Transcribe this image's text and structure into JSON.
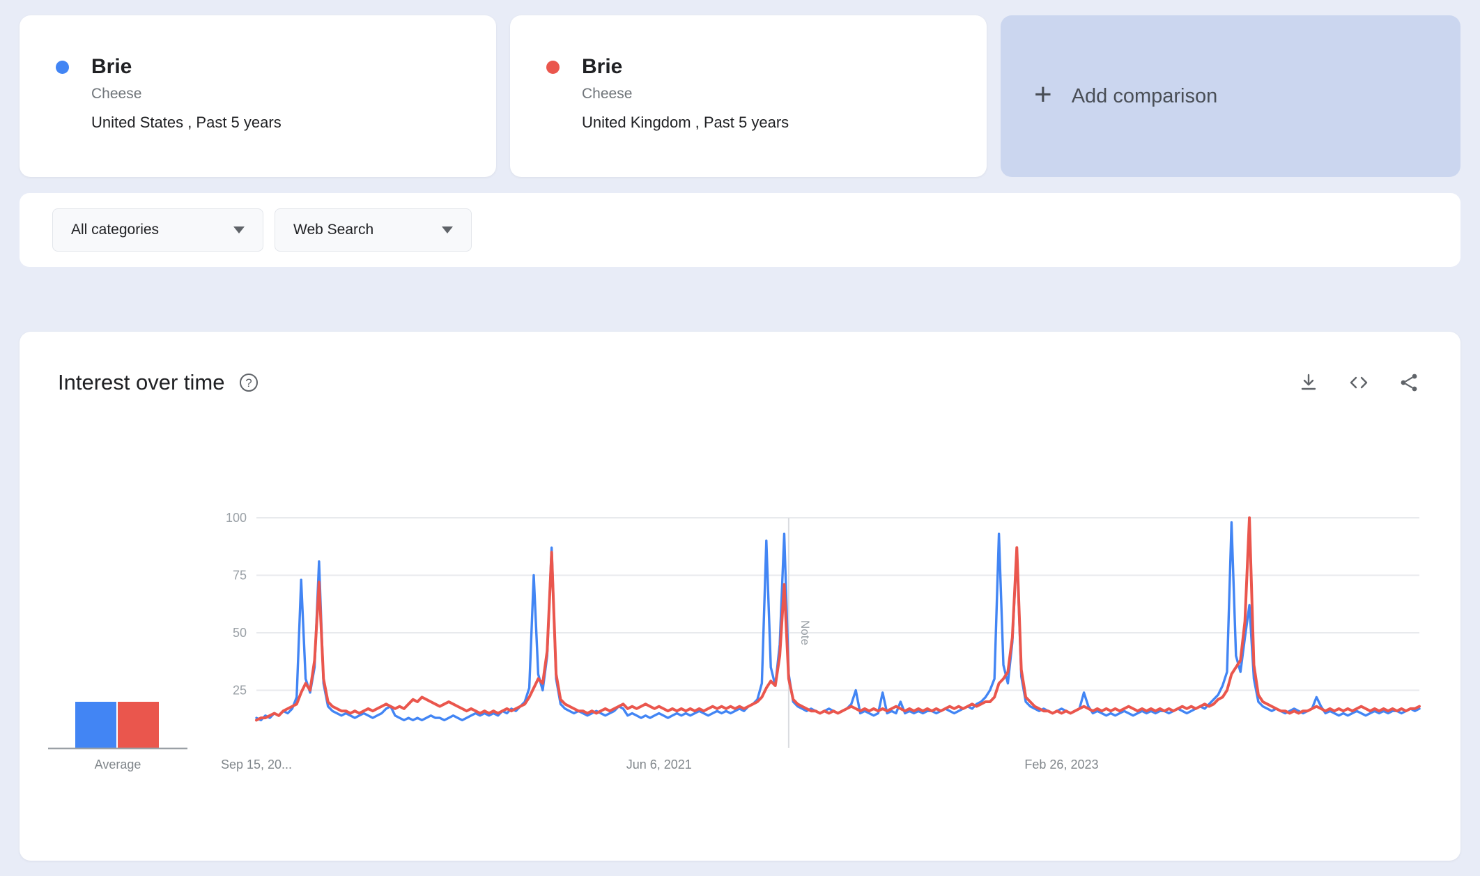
{
  "page_background": "#e8ecf7",
  "comparison_cards": [
    {
      "term": "Brie",
      "topic_type": "Cheese",
      "scope": "United States , Past 5 years",
      "color": "#4285f4"
    },
    {
      "term": "Brie",
      "topic_type": "Cheese",
      "scope": "United Kingdom , Past 5 years",
      "color": "#ea564d"
    }
  ],
  "add_comparison": {
    "plus": "+",
    "label": "Add comparison",
    "background": "#cbd6ef"
  },
  "filters": {
    "category": "All categories",
    "search_type": "Web Search"
  },
  "chart_section": {
    "title": "Interest over time",
    "icons": [
      "help-icon",
      "download-icon",
      "embed-icon",
      "share-icon"
    ]
  },
  "chart_data": {
    "type": "line",
    "title": "Interest over time",
    "ylim": [
      0,
      100
    ],
    "y_ticks": [
      25,
      50,
      75,
      100
    ],
    "grid": true,
    "legend_position": "none",
    "total_weeks": 261,
    "x_tick_labels": [
      {
        "label": "Sep 15, 20...",
        "week": 0
      },
      {
        "label": "Jun 6, 2021",
        "week": 90
      },
      {
        "label": "Feb 26, 2023",
        "week": 180
      }
    ],
    "note_marker": {
      "week": 119,
      "label": "Note"
    },
    "average_label": "Average",
    "series": [
      {
        "name": "Brie (United States)",
        "color": "#4285f4",
        "line_width": 3.4,
        "average": 20,
        "values": [
          13,
          12,
          14,
          13,
          15,
          14,
          16,
          15,
          17,
          22,
          73,
          30,
          24,
          35,
          81,
          28,
          18,
          16,
          15,
          14,
          15,
          14,
          13,
          14,
          15,
          14,
          13,
          14,
          15,
          17,
          18,
          14,
          13,
          12,
          13,
          12,
          13,
          12,
          13,
          14,
          13,
          13,
          12,
          13,
          14,
          13,
          12,
          13,
          14,
          15,
          14,
          15,
          14,
          15,
          14,
          16,
          15,
          17,
          16,
          18,
          20,
          26,
          75,
          32,
          25,
          40,
          87,
          30,
          19,
          17,
          16,
          15,
          16,
          15,
          14,
          15,
          16,
          15,
          14,
          15,
          16,
          18,
          17,
          14,
          15,
          14,
          13,
          14,
          13,
          14,
          15,
          14,
          13,
          14,
          15,
          14,
          15,
          14,
          15,
          16,
          15,
          14,
          15,
          16,
          15,
          16,
          15,
          16,
          17,
          16,
          18,
          19,
          21,
          28,
          90,
          35,
          27,
          45,
          93,
          32,
          20,
          18,
          17,
          16,
          17,
          16,
          15,
          16,
          17,
          16,
          15,
          16,
          17,
          19,
          25,
          15,
          16,
          15,
          14,
          15,
          24,
          15,
          16,
          15,
          20,
          15,
          16,
          15,
          16,
          15,
          16,
          16,
          15,
          16,
          17,
          16,
          15,
          16,
          17,
          18,
          17,
          19,
          20,
          22,
          25,
          30,
          93,
          36,
          28,
          46,
          87,
          31,
          20,
          18,
          17,
          16,
          17,
          16,
          15,
          16,
          17,
          16,
          15,
          16,
          17,
          24,
          18,
          15,
          16,
          15,
          14,
          15,
          14,
          15,
          16,
          15,
          14,
          15,
          16,
          15,
          16,
          15,
          16,
          16,
          15,
          16,
          17,
          16,
          15,
          16,
          17,
          18,
          17,
          19,
          21,
          23,
          27,
          33,
          98,
          40,
          33,
          48,
          62,
          30,
          20,
          18,
          17,
          16,
          17,
          16,
          15,
          16,
          17,
          16,
          15,
          16,
          17,
          22,
          18,
          15,
          16,
          15,
          14,
          15,
          14,
          15,
          16,
          15,
          14,
          15,
          16,
          15,
          16,
          15,
          16,
          16,
          15,
          16,
          17,
          16,
          17
        ]
      },
      {
        "name": "Brie (United Kingdom)",
        "color": "#ea564d",
        "line_width": 4,
        "average": 20,
        "values": [
          12,
          13,
          13,
          14,
          15,
          14,
          16,
          17,
          18,
          19,
          24,
          28,
          25,
          38,
          72,
          30,
          20,
          18,
          17,
          16,
          16,
          15,
          16,
          15,
          16,
          17,
          16,
          17,
          18,
          19,
          18,
          17,
          18,
          17,
          19,
          21,
          20,
          22,
          21,
          20,
          19,
          18,
          19,
          20,
          19,
          18,
          17,
          16,
          17,
          16,
          15,
          16,
          15,
          16,
          15,
          16,
          17,
          16,
          17,
          18,
          19,
          22,
          26,
          30,
          28,
          42,
          85,
          32,
          21,
          19,
          18,
          17,
          16,
          16,
          15,
          16,
          15,
          16,
          17,
          16,
          17,
          18,
          19,
          17,
          18,
          17,
          18,
          19,
          18,
          17,
          18,
          17,
          16,
          17,
          16,
          17,
          16,
          17,
          16,
          17,
          16,
          17,
          18,
          17,
          18,
          17,
          18,
          17,
          18,
          17,
          18,
          19,
          20,
          22,
          26,
          29,
          27,
          40,
          71,
          30,
          21,
          19,
          18,
          17,
          16,
          16,
          15,
          16,
          15,
          16,
          15,
          16,
          17,
          18,
          17,
          16,
          17,
          16,
          17,
          16,
          17,
          16,
          17,
          18,
          17,
          16,
          17,
          16,
          17,
          16,
          17,
          16,
          17,
          16,
          17,
          18,
          17,
          18,
          17,
          18,
          19,
          18,
          19,
          20,
          20,
          22,
          28,
          30,
          33,
          48,
          87,
          34,
          22,
          20,
          18,
          17,
          16,
          16,
          15,
          16,
          15,
          16,
          15,
          16,
          17,
          18,
          17,
          16,
          17,
          16,
          17,
          16,
          17,
          16,
          17,
          18,
          17,
          16,
          17,
          16,
          17,
          16,
          17,
          16,
          17,
          16,
          17,
          18,
          17,
          18,
          17,
          18,
          19,
          18,
          19,
          21,
          22,
          25,
          32,
          35,
          38,
          55,
          100,
          36,
          23,
          20,
          19,
          18,
          17,
          16,
          16,
          15,
          16,
          15,
          16,
          16,
          17,
          18,
          17,
          16,
          17,
          16,
          17,
          16,
          17,
          16,
          17,
          18,
          17,
          16,
          17,
          16,
          17,
          16,
          17,
          16,
          17,
          16,
          17,
          17,
          18
        ]
      }
    ]
  }
}
